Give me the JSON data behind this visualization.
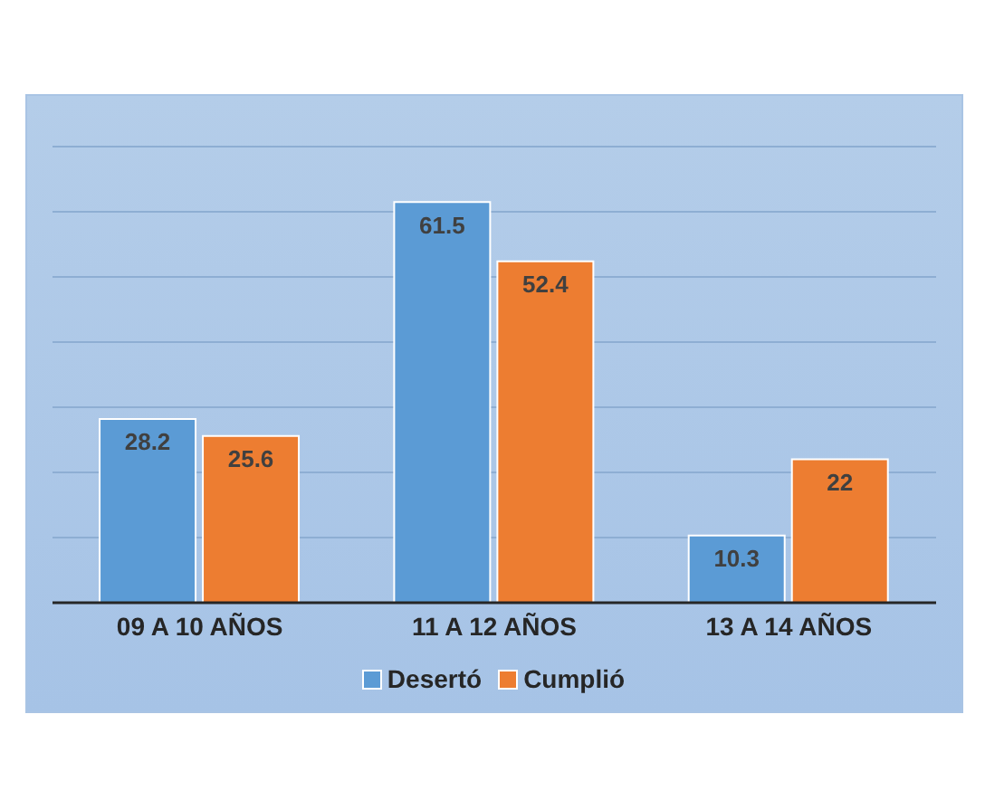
{
  "chart_data": {
    "type": "bar",
    "categories": [
      "09 A 10 AÑOS",
      "11 A 12 AÑOS",
      "13 A 14 AÑOS"
    ],
    "series": [
      {
        "name": "Desertó",
        "color": "#5b9bd5",
        "values": [
          28.2,
          61.5,
          10.3
        ]
      },
      {
        "name": "Cumplió",
        "color": "#ed7d31",
        "values": [
          25.6,
          52.4,
          22
        ]
      }
    ],
    "ylim": [
      0,
      70
    ],
    "yticks": [
      {
        "value": 0,
        "label": null
      },
      {
        "value": 10,
        "label": null
      },
      {
        "value": 20,
        "label": null
      },
      {
        "value": 30,
        "label": null
      },
      {
        "value": 40,
        "label": null
      },
      {
        "value": 50,
        "label": null
      },
      {
        "value": 60,
        "label": null
      },
      {
        "value": 70,
        "label": null
      }
    ],
    "tick_labels": "x",
    "grid": "y",
    "legend": "bottom",
    "data_labels": true
  }
}
